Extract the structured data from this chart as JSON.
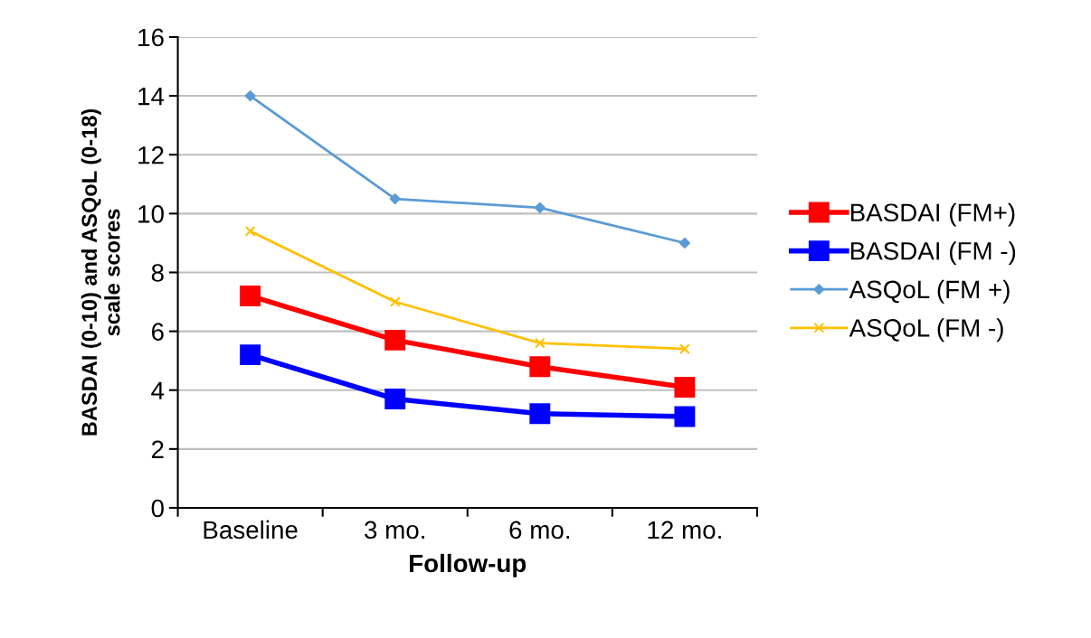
{
  "chart_data": {
    "type": "line",
    "xlabel": "Follow-up",
    "ylabel": "BASDAI (0-10) and ASQoL (0-18)\nscale scores",
    "categories": [
      "Baseline",
      "3 mo.",
      "6 mo.",
      "12 mo."
    ],
    "series": [
      {
        "name": "BASDAI (FM+)",
        "color": "#ff0000",
        "marker": "square",
        "values": [
          7.2,
          5.7,
          4.8,
          4.1
        ]
      },
      {
        "name": "BASDAI (FM -)",
        "color": "#0000ff",
        "marker": "square",
        "values": [
          5.2,
          3.7,
          3.2,
          3.1
        ]
      },
      {
        "name": "ASQoL (FM +)",
        "color": "#5b9bd5",
        "marker": "diamond",
        "values": [
          14.0,
          10.5,
          10.2,
          9.0
        ]
      },
      {
        "name": "ASQoL (FM -)",
        "color": "#ffc000",
        "marker": "cross",
        "values": [
          9.4,
          7.0,
          5.6,
          5.4
        ]
      }
    ],
    "ylim": [
      0,
      16
    ],
    "yticks": [
      0,
      2,
      4,
      6,
      8,
      10,
      12,
      14,
      16
    ],
    "grid": "y",
    "legend": "right",
    "line_style": "solid"
  }
}
